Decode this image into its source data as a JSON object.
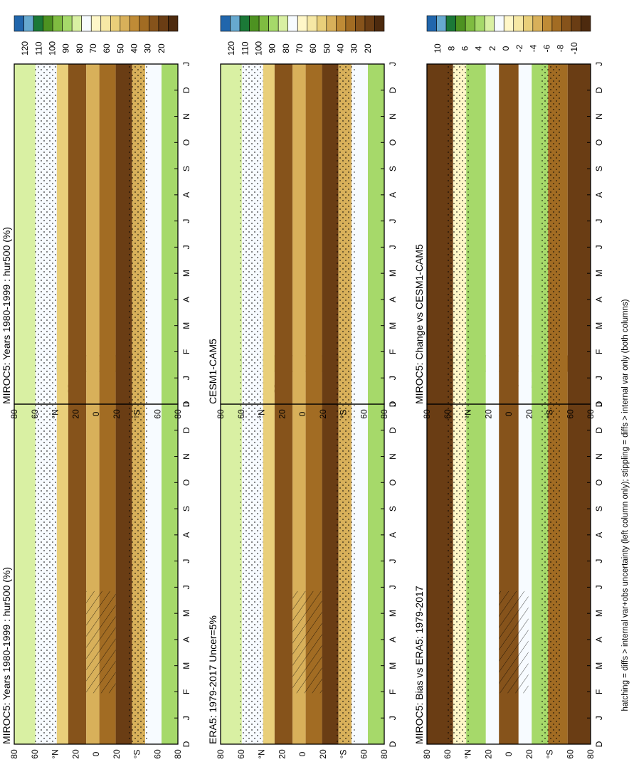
{
  "figure": {
    "footnote": "hatching = diffs > internal var+obs uncertainty (left column only); stippling = diffs > internal var only (both columns)",
    "month_labels": [
      "D",
      "J",
      "F",
      "M",
      "A",
      "M",
      "J",
      "J",
      "A",
      "S",
      "O",
      "N",
      "D",
      "J"
    ],
    "lat_labels": [
      "80",
      "60",
      "°N",
      "20",
      "0",
      "20",
      "°S",
      "60",
      "80"
    ]
  },
  "chart_data": [
    {
      "type": "heatmap",
      "title": "MIROC5: Years 1980-1999 : hur500 (%)",
      "xlabel": "",
      "ylabel": "",
      "x": [
        "D",
        "J",
        "F",
        "M",
        "A",
        "M",
        "J",
        "J",
        "A",
        "S",
        "O",
        "N",
        "D",
        "J"
      ],
      "y": [
        "80",
        "60",
        "°N",
        "20",
        "0",
        "20",
        "°S",
        "60",
        "80"
      ],
      "colorbar": {
        "levels": [
          "120",
          "110",
          "100",
          "90",
          "80",
          "70",
          "60",
          "50",
          "40",
          "30",
          "20"
        ],
        "colors": [
          "#2166ac",
          "#67a9cf",
          "#1b7837",
          "#4d9221",
          "#7fbc41",
          "#a6d96a",
          "#d9f0a3",
          "#f7fbff",
          "#fff7c8",
          "#f6e8a5",
          "#e9cf7a",
          "#d8b05a",
          "#bf8b36",
          "#a26c23",
          "#86531b",
          "#6a3d14",
          "#4d2a0e"
        ]
      },
      "overlays": [
        "stippling",
        "hatching"
      ]
    },
    {
      "type": "heatmap",
      "title": "MIROC5: Years 1980-1999 : hur500 (%)",
      "xlabel": "",
      "ylabel": "",
      "x": [
        "D",
        "J",
        "F",
        "M",
        "A",
        "M",
        "J",
        "J",
        "A",
        "S",
        "O",
        "N",
        "D",
        "J"
      ],
      "y": [
        "80",
        "60",
        "°N",
        "20",
        "0",
        "20",
        "°S",
        "60",
        "80"
      ],
      "colorbar": {
        "levels": [
          "120",
          "110",
          "100",
          "90",
          "80",
          "70",
          "60",
          "50",
          "40",
          "30",
          "20"
        ],
        "colors": [
          "#2166ac",
          "#67a9cf",
          "#1b7837",
          "#4d9221",
          "#7fbc41",
          "#a6d96a",
          "#d9f0a3",
          "#f7fbff",
          "#fff7c8",
          "#f6e8a5",
          "#e9cf7a",
          "#d8b05a",
          "#bf8b36",
          "#a26c23",
          "#86531b",
          "#6a3d14",
          "#4d2a0e"
        ]
      },
      "overlays": [
        "stippling"
      ]
    },
    {
      "type": "heatmap",
      "title": "ERA5: 1979-2017 Uncer=5%",
      "xlabel": "",
      "ylabel": "",
      "x": [
        "D",
        "J",
        "F",
        "M",
        "A",
        "M",
        "J",
        "J",
        "A",
        "S",
        "O",
        "N",
        "D",
        "J"
      ],
      "y": [
        "80",
        "60",
        "°N",
        "20",
        "0",
        "20",
        "°S",
        "60",
        "80"
      ],
      "colorbar": {
        "levels": [
          "120",
          "110",
          "100",
          "90",
          "80",
          "70",
          "60",
          "50",
          "40",
          "30",
          "20"
        ],
        "colors": [
          "#2166ac",
          "#67a9cf",
          "#1b7837",
          "#4d9221",
          "#7fbc41",
          "#a6d96a",
          "#d9f0a3",
          "#f7fbff",
          "#fff7c8",
          "#f6e8a5",
          "#e9cf7a",
          "#d8b05a",
          "#bf8b36",
          "#a26c23",
          "#86531b",
          "#6a3d14",
          "#4d2a0e"
        ]
      },
      "overlays": [
        "stippling",
        "hatching"
      ]
    },
    {
      "type": "heatmap",
      "title": "CESM1-CAM5",
      "xlabel": "",
      "ylabel": "",
      "x": [
        "D",
        "J",
        "F",
        "M",
        "A",
        "M",
        "J",
        "J",
        "A",
        "S",
        "O",
        "N",
        "D",
        "J"
      ],
      "y": [
        "80",
        "60",
        "°N",
        "20",
        "0",
        "20",
        "°S",
        "60",
        "80"
      ],
      "colorbar": {
        "levels": [
          "120",
          "110",
          "100",
          "90",
          "80",
          "70",
          "60",
          "50",
          "40",
          "30",
          "20"
        ],
        "colors": [
          "#2166ac",
          "#67a9cf",
          "#1b7837",
          "#4d9221",
          "#7fbc41",
          "#a6d96a",
          "#d9f0a3",
          "#f7fbff",
          "#fff7c8",
          "#f6e8a5",
          "#e9cf7a",
          "#d8b05a",
          "#bf8b36",
          "#a26c23",
          "#86531b",
          "#6a3d14",
          "#4d2a0e"
        ]
      },
      "overlays": [
        "stippling"
      ]
    },
    {
      "type": "heatmap",
      "title": "MIROC5: Bias vs ERA5: 1979-2017",
      "xlabel": "",
      "ylabel": "",
      "x": [
        "D",
        "J",
        "F",
        "M",
        "A",
        "M",
        "J",
        "J",
        "A",
        "S",
        "O",
        "N",
        "D",
        "J"
      ],
      "y": [
        "80",
        "60",
        "°N",
        "20",
        "0",
        "20",
        "°S",
        "60",
        "80"
      ],
      "colorbar": {
        "levels": [
          "10",
          "8",
          "6",
          "4",
          "2",
          "0",
          "-2",
          "-4",
          "-6",
          "-8",
          "-10"
        ],
        "colors": [
          "#2166ac",
          "#67a9cf",
          "#1b7837",
          "#4d9221",
          "#7fbc41",
          "#a6d96a",
          "#d9f0a3",
          "#f7fbff",
          "#fff7c8",
          "#f6e8a5",
          "#e9cf7a",
          "#d8b05a",
          "#bf8b36",
          "#a26c23",
          "#86531b",
          "#6a3d14",
          "#4d2a0e"
        ]
      },
      "overlays": [
        "stippling",
        "hatching"
      ]
    },
    {
      "type": "heatmap",
      "title": "MIROC5: Change vs CESM1-CAM5",
      "xlabel": "",
      "ylabel": "",
      "x": [
        "D",
        "J",
        "F",
        "M",
        "A",
        "M",
        "J",
        "J",
        "A",
        "S",
        "O",
        "N",
        "D",
        "J"
      ],
      "y": [
        "80",
        "60",
        "°N",
        "20",
        "0",
        "20",
        "°S",
        "60",
        "80"
      ],
      "colorbar": {
        "levels": [
          "10",
          "8",
          "6",
          "4",
          "2",
          "0",
          "-2",
          "-4",
          "-6",
          "-8",
          "-10"
        ],
        "colors": [
          "#2166ac",
          "#67a9cf",
          "#1b7837",
          "#4d9221",
          "#7fbc41",
          "#a6d96a",
          "#d9f0a3",
          "#f7fbff",
          "#fff7c8",
          "#f6e8a5",
          "#e9cf7a",
          "#d8b05a",
          "#bf8b36",
          "#a26c23",
          "#86531b",
          "#6a3d14",
          "#4d2a0e"
        ]
      },
      "overlays": [
        "stippling"
      ]
    }
  ]
}
